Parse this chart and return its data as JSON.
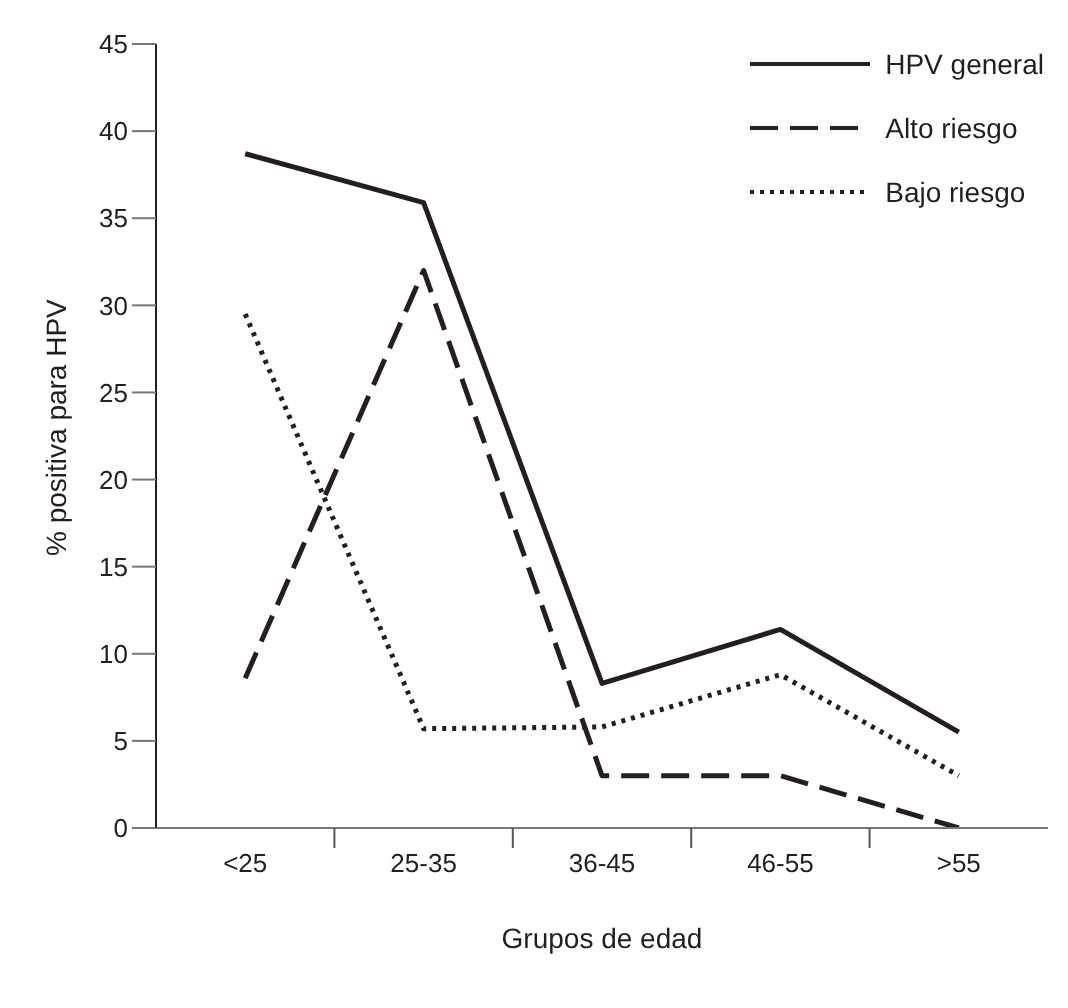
{
  "chart_data": {
    "type": "line",
    "xlabel": "Grupos de edad",
    "ylabel": "% positiva para HPV",
    "categories": [
      "<25",
      "25-35",
      "36-45",
      "46-55",
      ">55"
    ],
    "ylim": [
      0,
      45
    ],
    "yticks": [
      0,
      5,
      10,
      15,
      20,
      25,
      30,
      35,
      40,
      45
    ],
    "grid": false,
    "legend": "top right",
    "marker": "none",
    "series": [
      {
        "name": "HPV general",
        "color": "#231f20",
        "line_style": "solid",
        "values": [
          38.7,
          35.9,
          8.3,
          11.4,
          5.5
        ]
      },
      {
        "name": "Alto riesgo",
        "color": "#231f20",
        "line_style": "dashed",
        "values": [
          8.6,
          32.0,
          3.0,
          3.0,
          0
        ]
      },
      {
        "name": "Bajo riesgo",
        "color": "#231f20",
        "line_style": "dotted",
        "values": [
          29.5,
          5.7,
          5.8,
          8.8,
          3.0
        ]
      }
    ]
  }
}
